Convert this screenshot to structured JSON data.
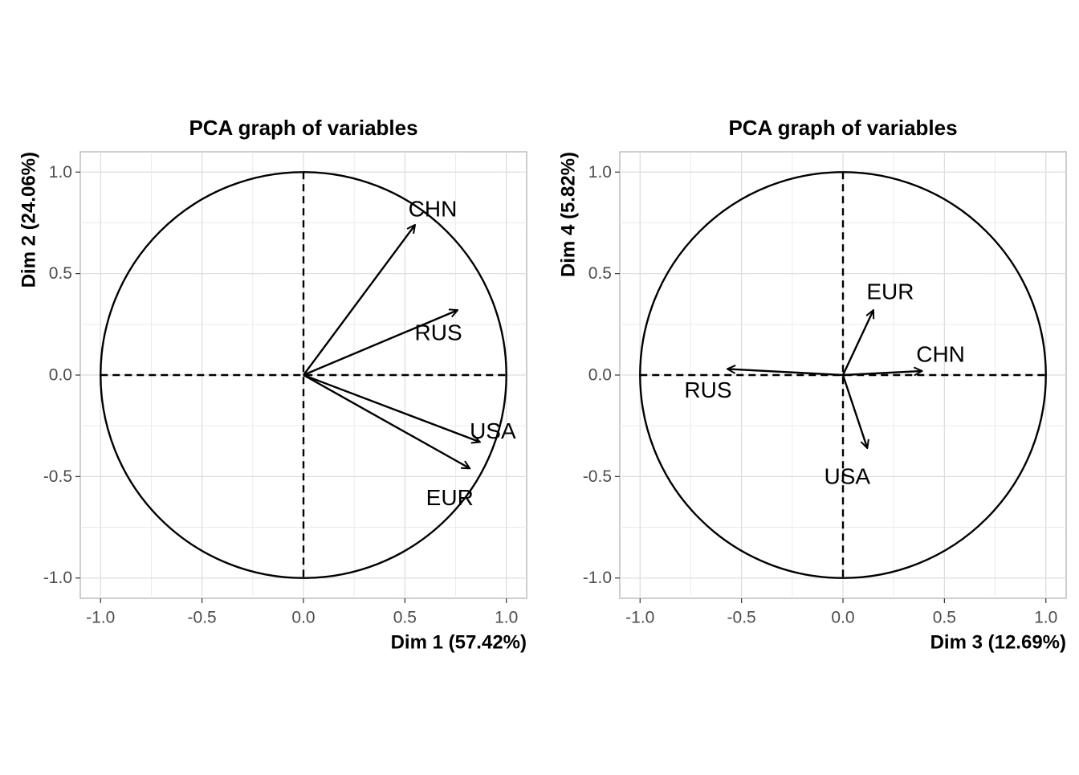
{
  "chart_data": [
    {
      "type": "scatter",
      "title": "PCA graph of variables",
      "xlabel": "Dim 1 (57.42%)",
      "ylabel": "Dim 2 (24.06%)",
      "xlim": [
        -1.1,
        1.1
      ],
      "ylim": [
        -1.1,
        1.1
      ],
      "xticks": [
        "-1.0",
        "-0.5",
        "0.0",
        "0.5",
        "1.0"
      ],
      "yticks": [
        "-1.0",
        "-0.5",
        "0.0",
        "0.5",
        "1.0"
      ],
      "grid": true,
      "correlation_circle": true,
      "variables": [
        {
          "name": "CHN",
          "x": 0.55,
          "y": 0.74
        },
        {
          "name": "RUS",
          "x": 0.76,
          "y": 0.32
        },
        {
          "name": "USA",
          "x": 0.87,
          "y": -0.33
        },
        {
          "name": "EUR",
          "x": 0.82,
          "y": -0.46
        }
      ]
    },
    {
      "type": "scatter",
      "title": "PCA graph of variables",
      "xlabel": "Dim 3 (12.69%)",
      "ylabel": "Dim 4 (5.82%)",
      "xlim": [
        -1.1,
        1.1
      ],
      "ylim": [
        -1.1,
        1.1
      ],
      "xticks": [
        "-1.0",
        "-0.5",
        "0.0",
        "0.5",
        "1.0"
      ],
      "yticks": [
        "-1.0",
        "-0.5",
        "0.0",
        "0.5",
        "1.0"
      ],
      "grid": true,
      "correlation_circle": true,
      "variables": [
        {
          "name": "EUR",
          "x": 0.15,
          "y": 0.32
        },
        {
          "name": "CHN",
          "x": 0.39,
          "y": 0.02
        },
        {
          "name": "RUS",
          "x": -0.57,
          "y": 0.03
        },
        {
          "name": "USA",
          "x": 0.12,
          "y": -0.36
        }
      ]
    }
  ]
}
